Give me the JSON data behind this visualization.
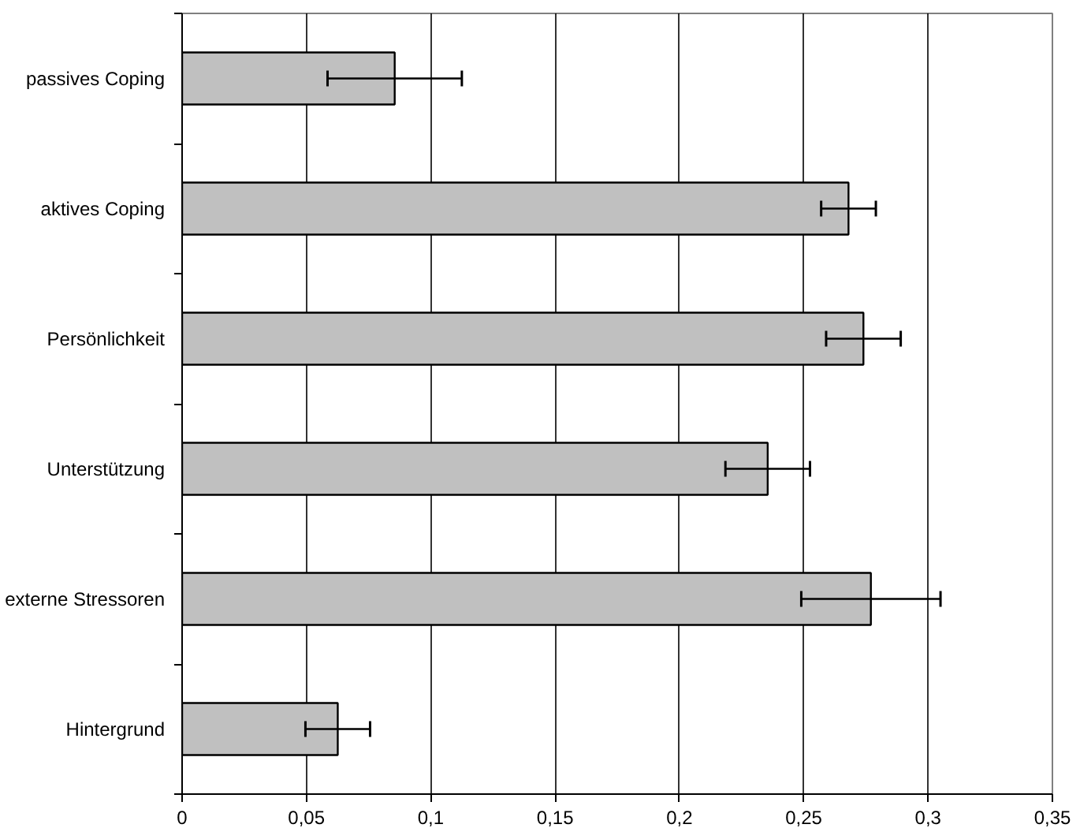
{
  "chart_data": {
    "type": "bar",
    "orientation": "horizontal",
    "categories": [
      "passives Coping",
      "aktives Coping",
      "Persönlichkeit",
      "Unterstützung",
      "externe Stressoren",
      "Hintergrund"
    ],
    "values": [
      0.0855,
      0.268,
      0.274,
      0.2355,
      0.277,
      0.0626
    ],
    "errors": [
      0.027,
      0.011,
      0.015,
      0.017,
      0.028,
      0.013
    ],
    "color": "#c0c0c0",
    "xlim": [
      0,
      0.35
    ],
    "xticks": [
      0,
      {
        "value": 0.05,
        "label": "0,05"
      },
      {
        "value": 0.1,
        "label": "0,1"
      },
      {
        "value": 0.15,
        "label": "0,15"
      },
      {
        "value": 0.2,
        "label": "0,2"
      },
      {
        "value": 0.25,
        "label": "0,25"
      },
      {
        "value": 0.3,
        "label": "0,3"
      },
      {
        "value": 0.35,
        "label": "0,35"
      }
    ],
    "grid": "x"
  }
}
